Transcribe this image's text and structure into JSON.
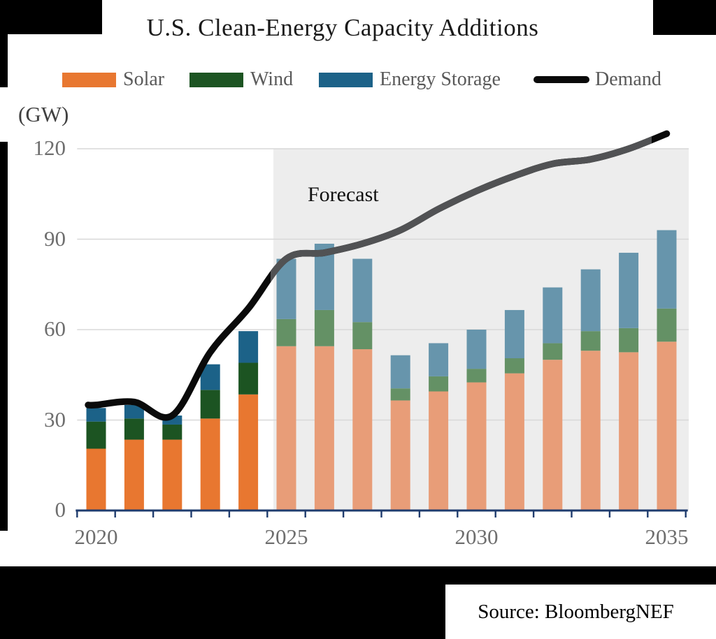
{
  "title": "U.S. Clean-Energy Capacity Additions",
  "units_label": "(GW)",
  "forecast_label": "Forecast",
  "source_label": "Source: BloombergNEF",
  "legend": [
    {
      "label": "Solar",
      "color": "#E87730",
      "type": "bar"
    },
    {
      "label": "Wind",
      "color": "#1C5422",
      "type": "bar"
    },
    {
      "label": "Energy Storage",
      "color": "#1C6288",
      "type": "bar"
    },
    {
      "label": "Demand",
      "color": "#0A0A0A",
      "type": "line"
    }
  ],
  "colors": {
    "solar_historical": "#E87730",
    "wind_historical": "#1C5422",
    "storage_historical": "#1C6288",
    "solar_forecast": "#E89D78",
    "wind_forecast": "#649165",
    "storage_forecast": "#6795AC",
    "demand_line": "#0A0A0A",
    "demand_line_forecast": "#515254",
    "axis": "#1F3C6E",
    "gridline": "#D8D8D8",
    "forecast_background": "#EDEDED",
    "tick_label": "#6E6E6E"
  },
  "chart_data": {
    "type": "bar",
    "stacked": true,
    "title": "U.S. Clean-Energy Capacity Additions",
    "ylabel": "(GW)",
    "ylim": [
      0,
      120
    ],
    "yticks": [
      0,
      30,
      60,
      90,
      120
    ],
    "grid": "horizontal",
    "legend_position": "top",
    "categories": [
      2020,
      2021,
      2022,
      2023,
      2024,
      2025,
      2026,
      2027,
      2028,
      2029,
      2030,
      2031,
      2032,
      2033,
      2034,
      2035
    ],
    "xticks_labeled": [
      2020,
      2025,
      2030,
      2035
    ],
    "forecast_start": 2025,
    "annotations": [
      "Forecast"
    ],
    "series": [
      {
        "name": "Solar",
        "values": [
          20.5,
          23.5,
          23.5,
          30.5,
          38.5,
          54.5,
          54.5,
          53.5,
          36.5,
          39.5,
          42.5,
          45.5,
          50,
          53,
          52.5,
          56
        ]
      },
      {
        "name": "Wind",
        "values": [
          9,
          7,
          5,
          9.5,
          10.5,
          9,
          12,
          9,
          4,
          5,
          4.5,
          5,
          5.5,
          6.5,
          8,
          11
        ]
      },
      {
        "name": "Energy Storage",
        "values": [
          4.5,
          4.5,
          3,
          8.5,
          10.5,
          20,
          22,
          21,
          11,
          11,
          13,
          16,
          18.5,
          20.5,
          25,
          26
        ]
      }
    ],
    "line_series": {
      "name": "Demand",
      "values": [
        35,
        36,
        31.5,
        52.5,
        67,
        83.5,
        85.5,
        88.5,
        93,
        100,
        106,
        111,
        115,
        116.5,
        120,
        125
      ]
    }
  }
}
